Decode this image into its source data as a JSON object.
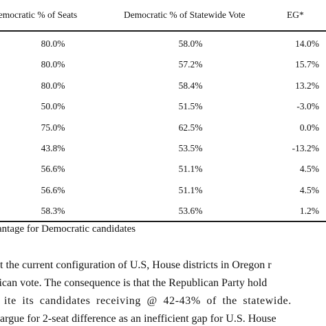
{
  "table": {
    "headers": {
      "seats": "Democratic % of Seats",
      "vote": "Democratic % of Statewide Vote",
      "eg": "EG*"
    },
    "rows": [
      {
        "seats": "80.0%",
        "vote": "58.0%",
        "eg": "14.0%"
      },
      {
        "seats": "80.0%",
        "vote": "57.2%",
        "eg": "15.7%"
      },
      {
        "seats": "80.0%",
        "vote": "58.4%",
        "eg": "13.2%"
      },
      {
        "seats": "50.0%",
        "vote": "51.5%",
        "eg": "-3.0%"
      },
      {
        "seats": "75.0%",
        "vote": "62.5%",
        "eg": "0.0%"
      },
      {
        "seats": "43.8%",
        "vote": "53.5%",
        "eg": "-13.2%"
      },
      {
        "seats": "56.6%",
        "vote": "51.1%",
        "eg": "4.5%"
      },
      {
        "seats": "56.6%",
        "vote": "51.1%",
        "eg": "4.5%"
      },
      {
        "seats": "58.3%",
        "vote": "53.6%",
        "eg": "1.2%"
      }
    ],
    "footnote": "antage for Democratic candidates"
  },
  "body": {
    "lines": [
      "t the current configuration of U.S, House districts in Oregon r",
      "lican vote. The consequence is that the Republican Party hold",
      "ite its candidates receiving @ 42-43% of the statewide.",
      "argue for 2-seat difference as an inefficient gap for U.S. House"
    ]
  }
}
